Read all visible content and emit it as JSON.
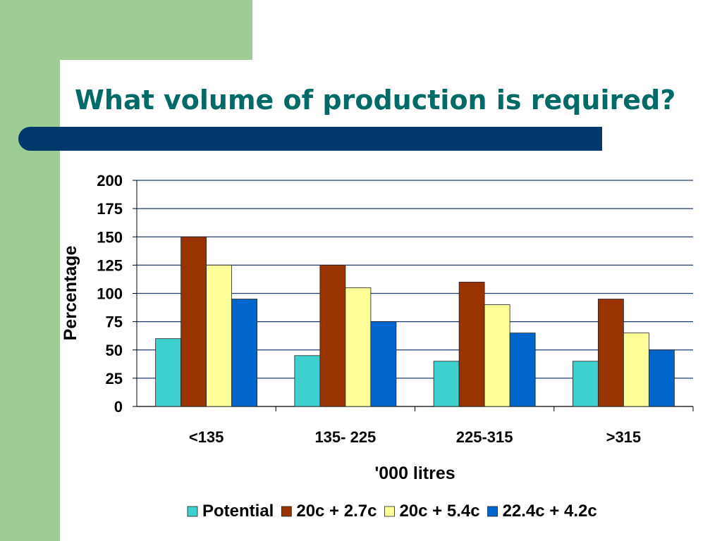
{
  "slide": {
    "title": "What volume of production is required?"
  },
  "colors": {
    "green_accent": "#9dcc95",
    "title_text": "#006a67",
    "title_bar": "#00386b"
  },
  "chart_data": {
    "type": "bar",
    "title": "",
    "xlabel": "'000 litres",
    "ylabel": "Percentage",
    "categories": [
      "<135",
      "135- 225",
      "225-315",
      ">315"
    ],
    "series": [
      {
        "name": "Potential",
        "values": [
          60,
          45,
          40,
          40
        ],
        "color": "#3ecfcf"
      },
      {
        "name": "20c + 2.7c",
        "values": [
          150,
          125,
          110,
          95
        ],
        "color": "#993300"
      },
      {
        "name": "20c + 5.4c",
        "values": [
          125,
          105,
          90,
          65
        ],
        "color": "#ffff99"
      },
      {
        "name": "22.4c + 4.2c",
        "values": [
          95,
          75,
          65,
          50
        ],
        "color": "#0066cc"
      }
    ],
    "ylim": [
      0,
      200
    ],
    "yticks": [
      0,
      25,
      50,
      75,
      100,
      125,
      150,
      175,
      200
    ],
    "grid": true,
    "legend": "bottom"
  }
}
